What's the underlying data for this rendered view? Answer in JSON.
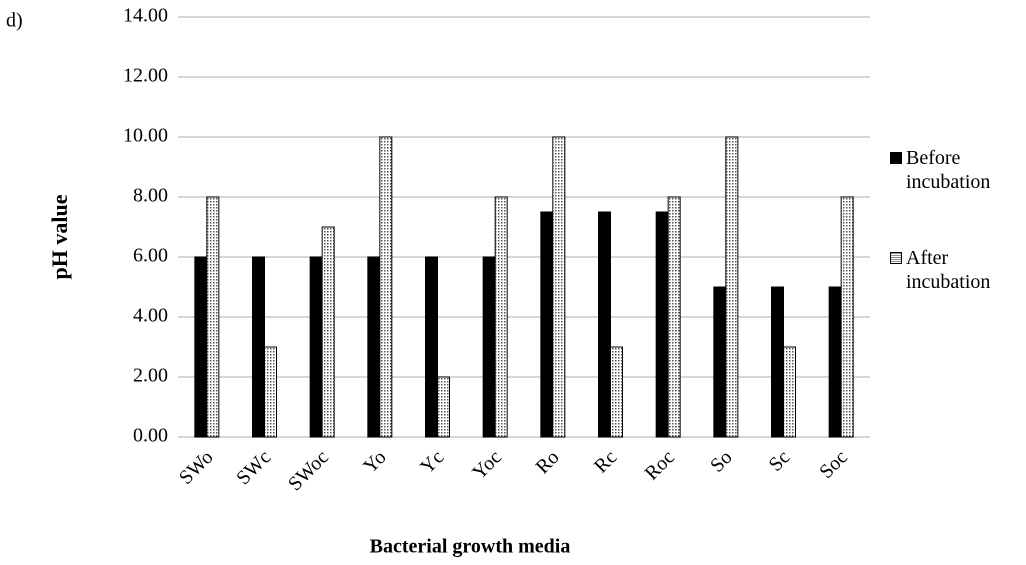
{
  "chart_data": {
    "type": "bar",
    "panel_label": "d)",
    "ylabel": "pH value",
    "xlabel": "Bacterial growth media",
    "categories": [
      "SWo",
      "SWc",
      "SWoc",
      "Yo",
      "Yc",
      "Yoc",
      "Ro",
      "Rc",
      "Roc",
      "So",
      "Sc",
      "Soc"
    ],
    "series": [
      {
        "name": "Before incubation",
        "color": "#000000",
        "values": [
          6,
          6,
          6,
          6,
          6,
          6,
          7.5,
          7.5,
          7.5,
          5,
          5,
          5
        ]
      },
      {
        "name": "After incubation",
        "color": "#ffffff",
        "values": [
          8,
          3,
          7,
          10,
          2,
          8,
          10,
          3,
          8,
          10,
          3,
          8
        ]
      }
    ],
    "ylim": [
      0,
      14
    ],
    "yticks": [
      {
        "value": 0,
        "label": "0.00"
      },
      {
        "value": 2,
        "label": "2.00"
      },
      {
        "value": 4,
        "label": "4.00"
      },
      {
        "value": 6,
        "label": "6.00"
      },
      {
        "value": 8,
        "label": "8.00"
      },
      {
        "value": 10,
        "label": "10.00"
      },
      {
        "value": 12,
        "label": "12.00"
      },
      {
        "value": 14,
        "label": "14.00"
      }
    ],
    "grid": true,
    "legend": "right"
  }
}
